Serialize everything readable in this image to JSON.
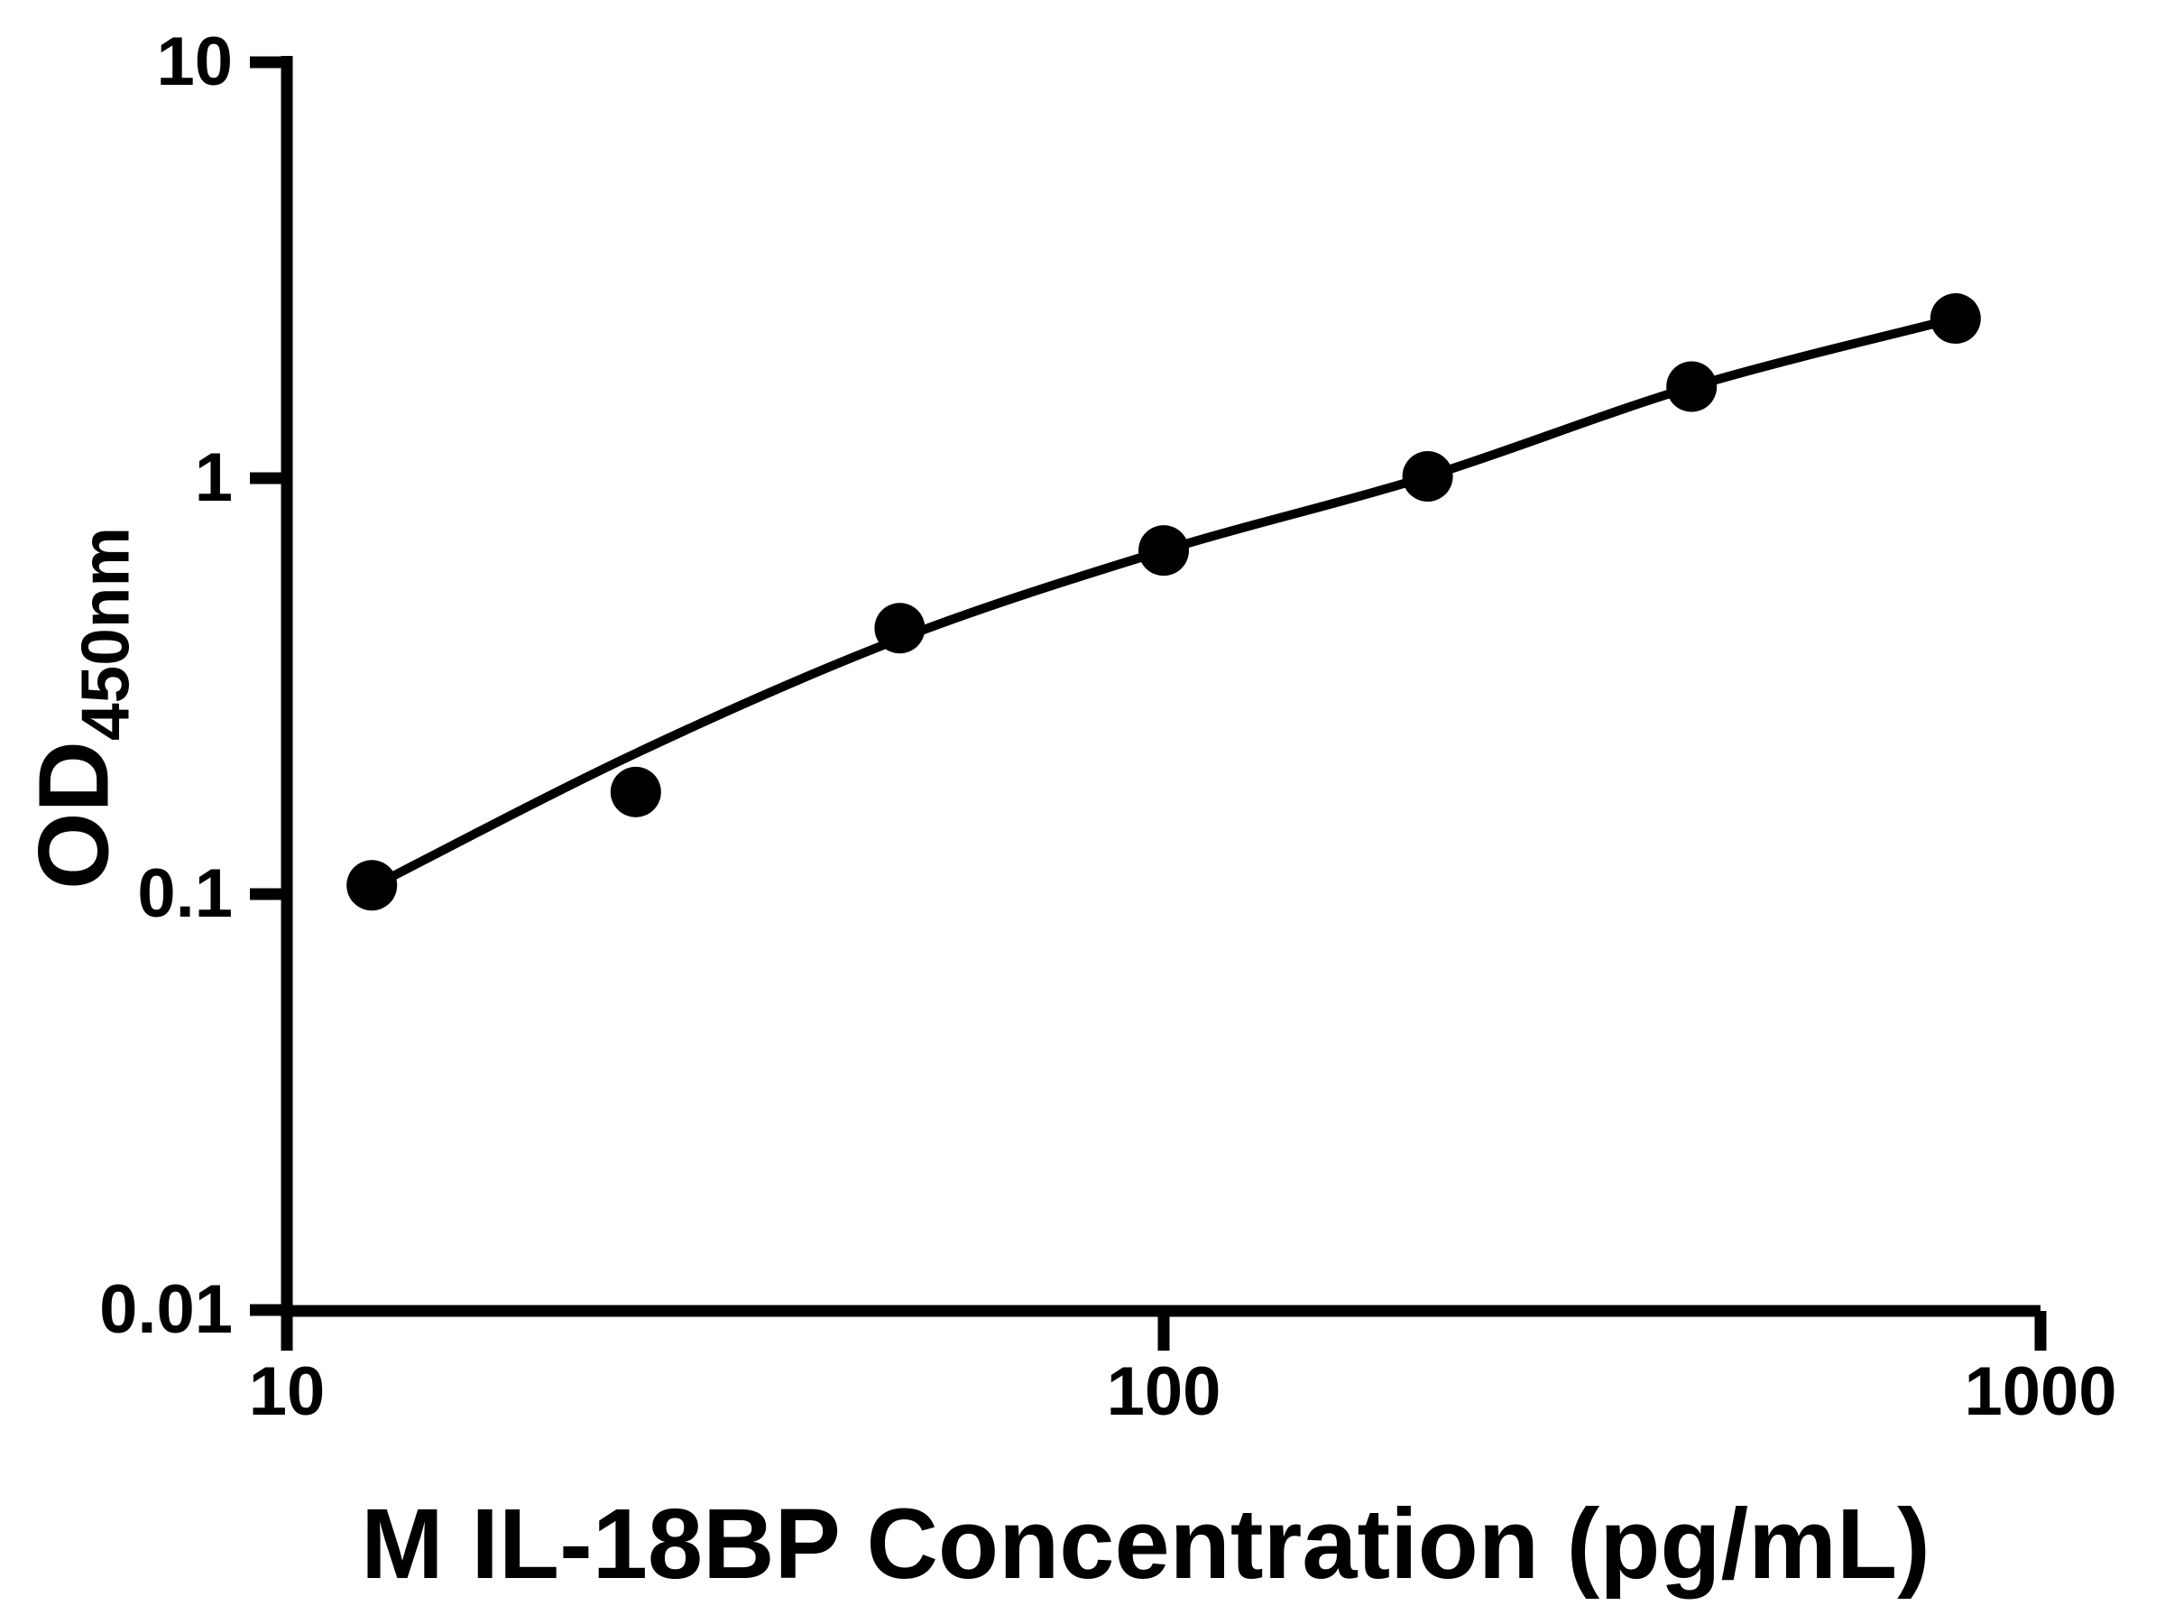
{
  "figure": {
    "background": "#ffffff",
    "ink_color": "#000000"
  },
  "axes": {
    "x": {
      "title": "M IL-18BP Concentration (pg/mL)",
      "scale": "log",
      "range": [
        10,
        1000
      ],
      "ticks": [
        {
          "value": 10,
          "label": "10"
        },
        {
          "value": 100,
          "label": "100"
        },
        {
          "value": 1000,
          "label": "1000"
        }
      ]
    },
    "y": {
      "title_main": "OD",
      "title_sub": "450nm",
      "scale": "log",
      "range": [
        0.01,
        10
      ],
      "ticks": [
        {
          "value": 10,
          "label": "10"
        },
        {
          "value": 1,
          "label": "1"
        },
        {
          "value": 0.1,
          "label": "0.1"
        },
        {
          "value": 0.01,
          "label": "0.01"
        }
      ]
    }
  },
  "chart_data": {
    "type": "scatter",
    "title": "",
    "xlabel": "M IL-18BP Concentration (pg/mL)",
    "ylabel": "OD450nm",
    "x_scale": "log",
    "y_scale": "log",
    "xlim": [
      10,
      1000
    ],
    "ylim": [
      0.01,
      10
    ],
    "grid": false,
    "legend": "none",
    "marker_color": "#000000",
    "series": [
      {
        "name": "standard-curve-points",
        "marker": "filled-circle",
        "points": [
          {
            "x": 12.5,
            "y": 0.105
          },
          {
            "x": 25,
            "y": 0.176
          },
          {
            "x": 50,
            "y": 0.436
          },
          {
            "x": 100,
            "y": 0.67
          },
          {
            "x": 200,
            "y": 1.01
          },
          {
            "x": 400,
            "y": 1.66
          },
          {
            "x": 800,
            "y": 2.42
          }
        ]
      }
    ],
    "fit_curve": {
      "name": "fitted-standard-curve",
      "points": [
        {
          "x": 12.5,
          "y": 0.104
        },
        {
          "x": 25,
          "y": 0.218
        },
        {
          "x": 50,
          "y": 0.411
        },
        {
          "x": 100,
          "y": 0.67
        },
        {
          "x": 200,
          "y": 1.01
        },
        {
          "x": 400,
          "y": 1.657
        },
        {
          "x": 800,
          "y": 2.421
        }
      ]
    }
  }
}
